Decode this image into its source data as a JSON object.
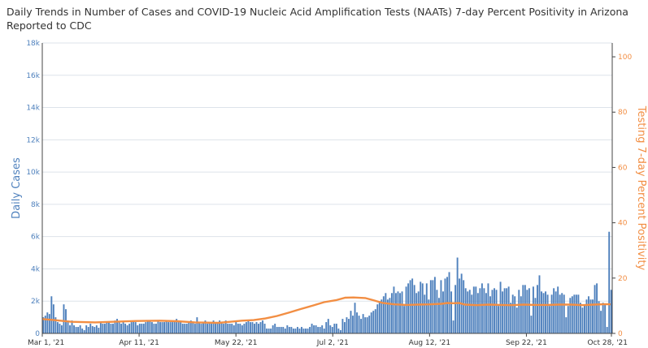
{
  "chart_data": {
    "type": "bar+line",
    "title": "Daily Trends in Number of Cases and COVID-19 Nucleic Acid Amplification Tests (NAATs) 7-day Percent Positivity in Arizona Reported to CDC",
    "ylabel_left": "Daily Cases",
    "ylabel_right": "Testing 7-day Percent Positivity",
    "y_left_ticks": [
      "0",
      "2k",
      "4k",
      "6k",
      "8k",
      "10k",
      "12k",
      "14k",
      "16k",
      "18k"
    ],
    "y_right_ticks": [
      "0",
      "20",
      "40",
      "60",
      "80",
      "100"
    ],
    "x_ticks": [
      "Mar 1, '21",
      "Apr 11, '21",
      "May 22, '21",
      "Jul 2, '21",
      "Aug 12, '21",
      "Sep 22, '21",
      "Oct 28, '21"
    ],
    "ylim_left": [
      0,
      18000
    ],
    "ylim_right": [
      0,
      105
    ],
    "grid": true,
    "colors": {
      "bars": "#4f81bd",
      "line": "#f28e43",
      "left_axis": "#4f81bd",
      "right_axis": "#f28e43"
    },
    "series": [
      {
        "name": "Daily Cases",
        "type": "bar",
        "values": [
          1000,
          1100,
          1300,
          1200,
          2300,
          1800,
          1000,
          700,
          600,
          500,
          1800,
          1500,
          700,
          500,
          800,
          500,
          400,
          400,
          500,
          300,
          200,
          500,
          400,
          600,
          450,
          400,
          500,
          350,
          700,
          600,
          600,
          700,
          700,
          600,
          600,
          800,
          900,
          700,
          600,
          700,
          600,
          500,
          600,
          700,
          800,
          700,
          500,
          600,
          600,
          600,
          700,
          800,
          800,
          700,
          600,
          600,
          800,
          700,
          700,
          700,
          800,
          700,
          700,
          700,
          800,
          900,
          700,
          700,
          600,
          600,
          600,
          700,
          800,
          700,
          600,
          1000,
          700,
          600,
          700,
          800,
          600,
          700,
          600,
          800,
          700,
          700,
          800,
          700,
          600,
          800,
          600,
          600,
          600,
          500,
          700,
          600,
          600,
          500,
          600,
          700,
          800,
          700,
          700,
          600,
          700,
          600,
          700,
          800,
          600,
          300,
          300,
          300,
          500,
          600,
          400,
          400,
          400,
          400,
          300,
          500,
          400,
          400,
          300,
          300,
          400,
          300,
          400,
          300,
          300,
          300,
          400,
          600,
          500,
          500,
          400,
          400,
          500,
          300,
          700,
          900,
          500,
          400,
          600,
          600,
          300,
          200,
          900,
          700,
          1000,
          900,
          1400,
          1100,
          1900,
          1300,
          1100,
          900,
          1200,
          1000,
          1000,
          1100,
          1300,
          1400,
          1500,
          1800,
          2000,
          2100,
          2300,
          2500,
          2100,
          2200,
          2500,
          2900,
          2500,
          2600,
          2500,
          2600,
          1700,
          2900,
          3100,
          3300,
          3400,
          3000,
          2500,
          2600,
          3200,
          3100,
          2400,
          3100,
          2100,
          3300,
          3300,
          3500,
          2700,
          2200,
          3300,
          2600,
          3400,
          3500,
          3800,
          2600,
          800,
          3000,
          4700,
          3400,
          3700,
          3300,
          2800,
          2600,
          2700,
          2400,
          2900,
          2900,
          2500,
          2800,
          3100,
          2800,
          2500,
          3100,
          2300,
          2700,
          2800,
          2700,
          1700,
          3200,
          2600,
          2800,
          2800,
          2900,
          1900,
          2400,
          2300,
          1600,
          2700,
          2300,
          3000,
          3000,
          2700,
          2800,
          1100,
          2900,
          2200,
          3000,
          3600,
          2600,
          2500,
          2600,
          2400,
          1700,
          2400,
          2800,
          2600,
          2900,
          2400,
          2500,
          2400,
          1000,
          1700,
          2200,
          2300,
          2400,
          2400,
          2400,
          1900,
          1600,
          1800,
          2100,
          2300,
          2100,
          2100,
          3000,
          3100,
          2000,
          1400,
          1900,
          1800,
          400,
          6300,
          2700
        ]
      },
      {
        "name": "Testing 7-day Percent Positivity",
        "type": "line",
        "points": [
          [
            0,
            5.2
          ],
          [
            10,
            4.8
          ],
          [
            25,
            4.2
          ],
          [
            45,
            4.0
          ],
          [
            60,
            4.2
          ],
          [
            80,
            4.5
          ],
          [
            100,
            4.6
          ],
          [
            115,
            4.4
          ],
          [
            130,
            4.0
          ],
          [
            150,
            3.8
          ],
          [
            160,
            4.2
          ],
          [
            170,
            4.6
          ],
          [
            180,
            4.8
          ],
          [
            190,
            5.4
          ],
          [
            200,
            6.3
          ],
          [
            210,
            7.5
          ],
          [
            220,
            8.8
          ],
          [
            230,
            10.0
          ],
          [
            240,
            11.3
          ],
          [
            250,
            12.0
          ],
          [
            258,
            12.9
          ],
          [
            265,
            13.0
          ],
          [
            275,
            12.8
          ],
          [
            282,
            12.0
          ],
          [
            290,
            11.0
          ],
          [
            300,
            10.5
          ],
          [
            310,
            10.3
          ],
          [
            320,
            10.4
          ],
          [
            330,
            10.5
          ],
          [
            340,
            10.7
          ],
          [
            345,
            11.0
          ],
          [
            350,
            10.9
          ],
          [
            355,
            11.0
          ],
          [
            360,
            10.4
          ],
          [
            370,
            10.2
          ],
          [
            380,
            10.4
          ],
          [
            390,
            10.3
          ],
          [
            400,
            10.2
          ],
          [
            410,
            10.4
          ],
          [
            420,
            10.3
          ],
          [
            430,
            10.3
          ],
          [
            440,
            10.4
          ],
          [
            450,
            10.4
          ],
          [
            460,
            10.2
          ],
          [
            470,
            10.4
          ],
          [
            480,
            10.6
          ],
          [
            484,
            10.5
          ]
        ]
      }
    ]
  }
}
